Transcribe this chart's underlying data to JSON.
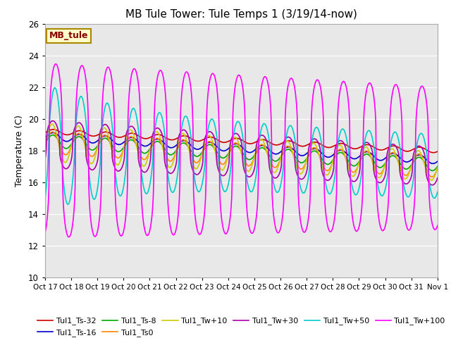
{
  "title": "MB Tule Tower: Tule Temps 1 (3/19/14-now)",
  "ylabel": "Temperature (C)",
  "xlabel": "",
  "ylim": [
    10,
    26
  ],
  "yticks": [
    10,
    12,
    14,
    16,
    18,
    20,
    22,
    24,
    26
  ],
  "xlim": [
    0,
    15
  ],
  "xtick_labels": [
    "Oct 17",
    "Oct 18",
    "Oct 19",
    "Oct 20",
    "Oct 21",
    "Oct 22",
    "Oct 23",
    "Oct 24",
    "Oct 25",
    "Oct 26",
    "Oct 27",
    "Oct 28",
    "Oct 29",
    "Oct 30",
    "Oct 31",
    "Nov 1"
  ],
  "legend_label": "MB_tule",
  "series_order": [
    "Tul1_Ts-32",
    "Tul1_Ts-16",
    "Tul1_Ts-8",
    "Tul1_Ts0",
    "Tul1_Tw+10",
    "Tul1_Tw+30",
    "Tul1_Tw+50",
    "Tul1_Tw+100"
  ],
  "series": {
    "Tul1_Ts-32": {
      "color": "#cc0000",
      "linewidth": 1.2
    },
    "Tul1_Ts-16": {
      "color": "#0000cc",
      "linewidth": 1.2
    },
    "Tul1_Ts-8": {
      "color": "#00aa00",
      "linewidth": 1.2
    },
    "Tul1_Ts0": {
      "color": "#ff8800",
      "linewidth": 1.2
    },
    "Tul1_Tw+10": {
      "color": "#cccc00",
      "linewidth": 1.2
    },
    "Tul1_Tw+30": {
      "color": "#aa00aa",
      "linewidth": 1.2
    },
    "Tul1_Tw+50": {
      "color": "#00cccc",
      "linewidth": 1.2
    },
    "Tul1_Tw+100": {
      "color": "#ff00ff",
      "linewidth": 1.2
    }
  },
  "legend_ncol": 6,
  "background_color": "#e8e8e8",
  "title_fontsize": 11,
  "grid_color": "white"
}
